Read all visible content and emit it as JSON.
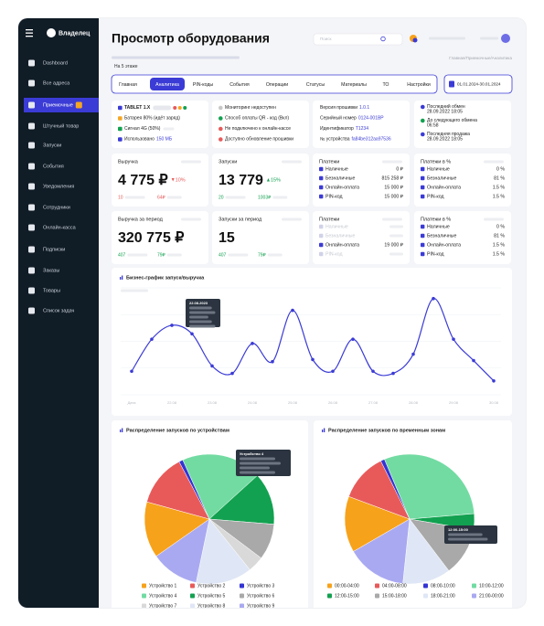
{
  "sidebar": {
    "brand": "Владелец",
    "active": 2,
    "items": [
      "Dashboard",
      "Все адреса",
      "Приемочные",
      "Штучный товар",
      "Запуски",
      "События",
      "Уведомления",
      "Сотрудники",
      "Онлайн-касса",
      "Подписки",
      "Заказы",
      "Товары",
      "Список задач"
    ]
  },
  "header": {
    "title": "Просмотр оборудования",
    "search": "Поиск",
    "location": "На 5 этаже",
    "breadcrumb": "Главная/Приемочные/Аналитика"
  },
  "tabs": {
    "active": 1,
    "items": [
      "Главная",
      "Аналитика",
      "PIN-коды",
      "События",
      "Операции",
      "Статусы",
      "Материалы",
      "ТО",
      "Настройки"
    ],
    "date_range": "01.01.2024-30.01.2024"
  },
  "info_cards": [
    {
      "items": [
        {
          "text": "TABLET 1.X"
        },
        {
          "text": "Батарея 80% (идёт заряд)"
        },
        {
          "text": "Сигнал 4G (50%)"
        },
        {
          "text": "Использовано",
          "value": "150 МБ"
        }
      ]
    },
    {
      "items": [
        {
          "text": "Мониторинг недоступен"
        },
        {
          "text": "Способ оплаты QR - код (Вкл)"
        },
        {
          "text": "Не подключено к онлайн-кассе"
        },
        {
          "text": "Доступно обновление прошивки"
        }
      ]
    },
    {
      "items": [
        {
          "text": "Версия прошивки",
          "value": "1.0.1"
        },
        {
          "text": "Серийный номер",
          "value": "0124-001BP"
        },
        {
          "text": "Идентификатор",
          "value": "T1234"
        },
        {
          "text": "№ устройства",
          "value": "fa84be312aa97536"
        }
      ]
    },
    {
      "items": [
        {
          "text": "Последний обмен",
          "value": "28.09.2022 18:05"
        },
        {
          "text": "До следующего обмена",
          "value": "06:58"
        },
        {
          "text": "Последняя продажа",
          "value": "28.09.2022 18:05"
        }
      ]
    }
  ],
  "stats": [
    {
      "title": "Выручка",
      "value": "4 775 ₽",
      "change": "10%",
      "trend": "down",
      "footer": [
        "10",
        "64₽"
      ]
    },
    {
      "title": "Запуски",
      "value": "13 779",
      "change": "15%",
      "trend": "up",
      "footer": [
        "20",
        "1003₽"
      ]
    },
    {
      "title": "Платежи",
      "rows": [
        {
          "label": "Наличные",
          "value": "0 ₽"
        },
        {
          "label": "Безналичные",
          "value": "815 258 ₽"
        },
        {
          "label": "Онлайн-оплата",
          "value": "15 000 ₽"
        },
        {
          "label": "PIN-код",
          "value": "15 000 ₽"
        }
      ]
    },
    {
      "title": "Платежи в %",
      "rows": [
        {
          "label": "Наличные",
          "value": "0 %"
        },
        {
          "label": "Безналичные",
          "value": "81 %"
        },
        {
          "label": "Онлайн-оплата",
          "value": "1.5 %"
        },
        {
          "label": "PIN-код",
          "value": "1.5 %"
        }
      ]
    },
    {
      "title": "Выручка за период",
      "value": "320 775 ₽",
      "footer": [
        "407",
        "79₽"
      ]
    },
    {
      "title": "Запуски за период",
      "value": "15",
      "footer": [
        "407",
        "79₽"
      ]
    },
    {
      "title": "Платежи",
      "rows": [
        {
          "label": "Наличные"
        },
        {
          "label": "Безналичные"
        },
        {
          "label": "Онлайн-оплата",
          "value": "19 000 ₽"
        },
        {
          "label": "PIN-код"
        }
      ]
    },
    {
      "title": "Платежи в %",
      "rows": [
        {
          "label": "Наличные",
          "value": "0 %"
        },
        {
          "label": "Безналичные",
          "value": "81 %"
        },
        {
          "label": "Онлайн-оплата",
          "value": "1.5 %"
        },
        {
          "label": "PIN-код",
          "value": "1.5 %"
        }
      ]
    }
  ],
  "chart_data": [
    {
      "type": "line",
      "title": "Бизнес-график запуск/выручка",
      "color": "#3b3bd6",
      "categories": [
        "Дата",
        null,
        "22.08",
        null,
        "23.08",
        null,
        "24.08",
        null,
        "25.08",
        null,
        "26.08",
        null,
        "27.08",
        null,
        "28.08",
        null,
        "29.08",
        null,
        "30.08"
      ],
      "values": [
        22,
        52,
        65,
        57,
        27,
        20,
        48,
        31,
        79,
        33,
        22,
        52,
        22,
        20,
        38,
        90,
        52,
        32,
        13
      ],
      "ylim": [
        0,
        100
      ],
      "yticks": [
        0,
        25,
        50,
        75,
        100
      ],
      "grid": true,
      "tooltip": {
        "title": "22.08.2023"
      }
    },
    {
      "type": "pie",
      "title": "Распределение запусков по устройствам",
      "categories": [
        "Устройство 1",
        "Устройство 2",
        "Устройство 3",
        "Устройство 4",
        "Устройство 5",
        "Устройство 6",
        "Устройство 7",
        "Устройство 8",
        "Устройство 9"
      ],
      "values": [
        14,
        13,
        1,
        20,
        13,
        9,
        4,
        14,
        12
      ],
      "colors": [
        "#f7a21b",
        "#e85a5a",
        "#3434d4",
        "#72dba2",
        "#12a150",
        "#a9a9a9",
        "#d9d9d9",
        "#dfe6f5",
        "#a9a9f2"
      ],
      "tooltip": {
        "title": "Устройство 4"
      }
    },
    {
      "type": "pie",
      "title": "Распределение запусков по временным зонам",
      "categories": [
        "00:00-04:00",
        "04:00-08:00",
        "08:00-10:00",
        "10:00-12:00",
        "12:00-15:00",
        "15:00-18:00",
        "18:00-21:00",
        "21:00-00:00"
      ],
      "values": [
        14,
        12,
        1,
        30,
        4,
        12,
        12,
        15
      ],
      "colors": [
        "#f7a21b",
        "#e85a5a",
        "#3434d4",
        "#72dba2",
        "#12a150",
        "#a9a9a9",
        "#dfe6f5",
        "#a9a9f2"
      ],
      "tooltip": {
        "title": "12:00-15:00"
      }
    }
  ]
}
